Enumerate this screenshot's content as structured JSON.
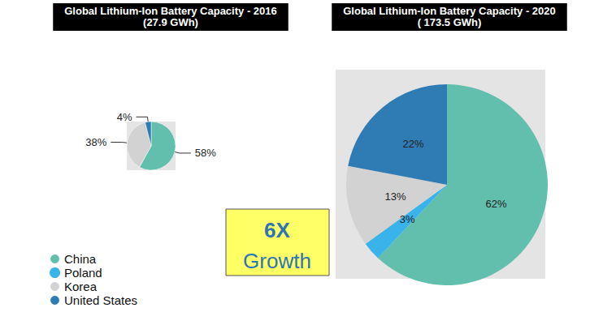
{
  "chart_data": [
    {
      "type": "pie",
      "title": "Global Lithium-Ion Battery Capacity - 2016",
      "subtitle": "(27.9 GWh)",
      "categories": [
        "China",
        "Korea",
        "United States"
      ],
      "values": [
        58,
        38,
        4
      ],
      "value_labels": [
        "58%",
        "38%",
        "4%"
      ],
      "colors": [
        "#62bfae",
        "#d2d2d2",
        "#2f7bb3"
      ],
      "data_labels": true
    },
    {
      "type": "pie",
      "title": "Global Lithium-Ion Battery Capacity - 2020",
      "subtitle": "( 173.5 GWh)",
      "categories": [
        "China",
        "Poland",
        "Korea",
        "United States"
      ],
      "values": [
        62,
        3,
        13,
        22
      ],
      "value_labels": [
        "62%",
        "3%",
        "13%",
        "22%"
      ],
      "colors": [
        "#62bfae",
        "#3ab2ea",
        "#d2d2d2",
        "#2f7bb3"
      ],
      "data_labels": true,
      "legend": "lower left",
      "annotations": [
        "6X",
        "Growth"
      ]
    }
  ]
}
